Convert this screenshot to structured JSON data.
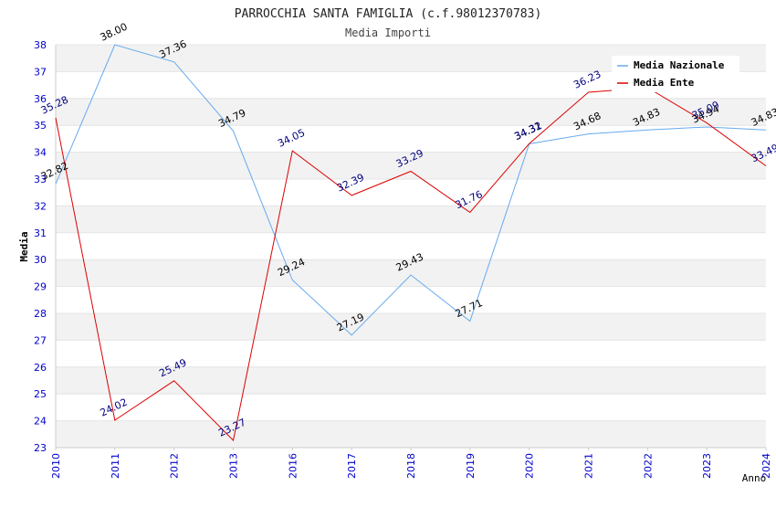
{
  "chart_data": {
    "type": "line",
    "title": "PARROCCHIA SANTA FAMIGLIA (c.f.98012370783)",
    "subtitle": "Media Importi",
    "xlabel": "Anno",
    "ylabel": "Media",
    "x": [
      "2010",
      "2011",
      "2012",
      "2013",
      "2016",
      "2017",
      "2018",
      "2019",
      "2020",
      "2021",
      "2022",
      "2023",
      "2024"
    ],
    "ylim": [
      23,
      38
    ],
    "yticks": [
      "23",
      "24",
      "25",
      "26",
      "27",
      "28",
      "29",
      "30",
      "31",
      "32",
      "33",
      "34",
      "35",
      "36",
      "37",
      "38"
    ],
    "grid": "horizontal alternating bands",
    "legend_position": "top-right",
    "series": [
      {
        "name": "Media Nazionale",
        "color": "#66aaee",
        "label_color": "#000000",
        "values": [
          32.82,
          38.0,
          37.36,
          34.79,
          29.24,
          27.19,
          29.43,
          27.71,
          34.31,
          34.68,
          34.83,
          34.94,
          34.83
        ],
        "labels": [
          "32.82",
          "38.00",
          "37.36",
          "34.79",
          "29.24",
          "27.19",
          "29.43",
          "27.71",
          "34.31",
          "34.68",
          "34.83",
          "34.94",
          "34.83"
        ]
      },
      {
        "name": "Media Ente",
        "color": "#dd0000",
        "label_color": "#000080",
        "values": [
          35.28,
          24.02,
          25.49,
          23.27,
          34.05,
          32.39,
          33.29,
          31.76,
          34.32,
          36.23,
          36.4,
          35.09,
          33.49
        ],
        "labels": [
          "35.28",
          "24.02",
          "25.49",
          "23.27",
          "34.05",
          "32.39",
          "33.29",
          "31.76",
          "34.32",
          "36.23",
          "",
          "35.09",
          "33.49"
        ]
      }
    ]
  }
}
